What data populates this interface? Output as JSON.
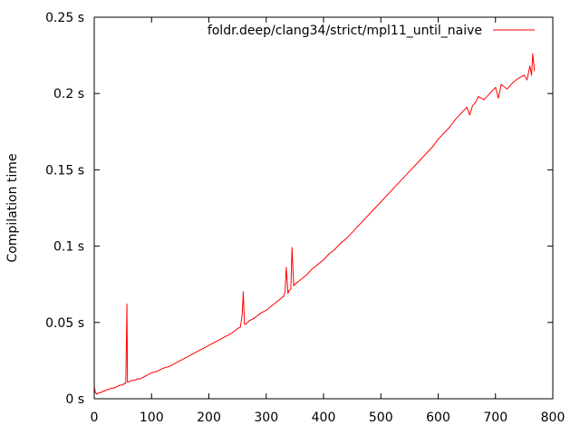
{
  "chart_data": {
    "type": "line",
    "title": "",
    "xlabel": "",
    "ylabel": "Compilation time",
    "xlim": [
      0,
      800
    ],
    "ylim": [
      0,
      0.25
    ],
    "x_ticks": [
      0,
      100,
      200,
      300,
      400,
      500,
      600,
      700,
      800
    ],
    "x_tick_labels": [
      "0",
      "100",
      "200",
      "300",
      "400",
      "500",
      "600",
      "700",
      "800"
    ],
    "y_ticks": [
      0,
      0.05,
      0.1,
      0.15,
      0.2,
      0.25
    ],
    "y_tick_labels": [
      "0 s",
      "0.05 s",
      "0.1 s",
      "0.15 s",
      "0.2 s",
      "0.25 s"
    ],
    "grid": false,
    "legend_position": "top-right",
    "series": [
      {
        "name": "foldr.deep/clang34/strict/mpl11_until_naive",
        "color": "#ff0000",
        "x": [
          0,
          2,
          5,
          8,
          12,
          15,
          18,
          22,
          25,
          30,
          35,
          40,
          45,
          50,
          52,
          55,
          56,
          57,
          58,
          60,
          65,
          70,
          75,
          80,
          85,
          90,
          95,
          100,
          110,
          120,
          130,
          140,
          150,
          160,
          170,
          180,
          190,
          200,
          210,
          220,
          230,
          240,
          250,
          255,
          258,
          260,
          262,
          265,
          270,
          280,
          290,
          300,
          310,
          320,
          330,
          333,
          335,
          338,
          340,
          343,
          345,
          348,
          350,
          360,
          370,
          380,
          390,
          400,
          410,
          420,
          430,
          440,
          450,
          460,
          470,
          480,
          490,
          500,
          510,
          520,
          530,
          540,
          550,
          560,
          570,
          580,
          590,
          600,
          610,
          620,
          630,
          640,
          650,
          655,
          660,
          665,
          670,
          680,
          690,
          700,
          705,
          710,
          720,
          730,
          740,
          750,
          755,
          760,
          763,
          765,
          768
        ],
        "values": [
          0.008,
          0.004,
          0.003,
          0.004,
          0.004,
          0.005,
          0.005,
          0.006,
          0.006,
          0.007,
          0.007,
          0.008,
          0.009,
          0.009,
          0.01,
          0.01,
          0.035,
          0.062,
          0.011,
          0.011,
          0.012,
          0.012,
          0.013,
          0.013,
          0.014,
          0.015,
          0.016,
          0.017,
          0.018,
          0.02,
          0.021,
          0.023,
          0.025,
          0.027,
          0.029,
          0.031,
          0.033,
          0.035,
          0.037,
          0.039,
          0.041,
          0.043,
          0.046,
          0.047,
          0.055,
          0.07,
          0.049,
          0.049,
          0.051,
          0.053,
          0.056,
          0.058,
          0.061,
          0.064,
          0.067,
          0.07,
          0.086,
          0.069,
          0.071,
          0.072,
          0.099,
          0.074,
          0.075,
          0.078,
          0.081,
          0.085,
          0.088,
          0.091,
          0.095,
          0.098,
          0.102,
          0.105,
          0.109,
          0.113,
          0.117,
          0.121,
          0.125,
          0.129,
          0.133,
          0.137,
          0.141,
          0.145,
          0.149,
          0.153,
          0.157,
          0.161,
          0.165,
          0.17,
          0.174,
          0.178,
          0.183,
          0.187,
          0.191,
          0.186,
          0.192,
          0.194,
          0.198,
          0.196,
          0.2,
          0.204,
          0.197,
          0.206,
          0.203,
          0.207,
          0.21,
          0.212,
          0.209,
          0.218,
          0.212,
          0.226,
          0.215
        ]
      }
    ]
  }
}
